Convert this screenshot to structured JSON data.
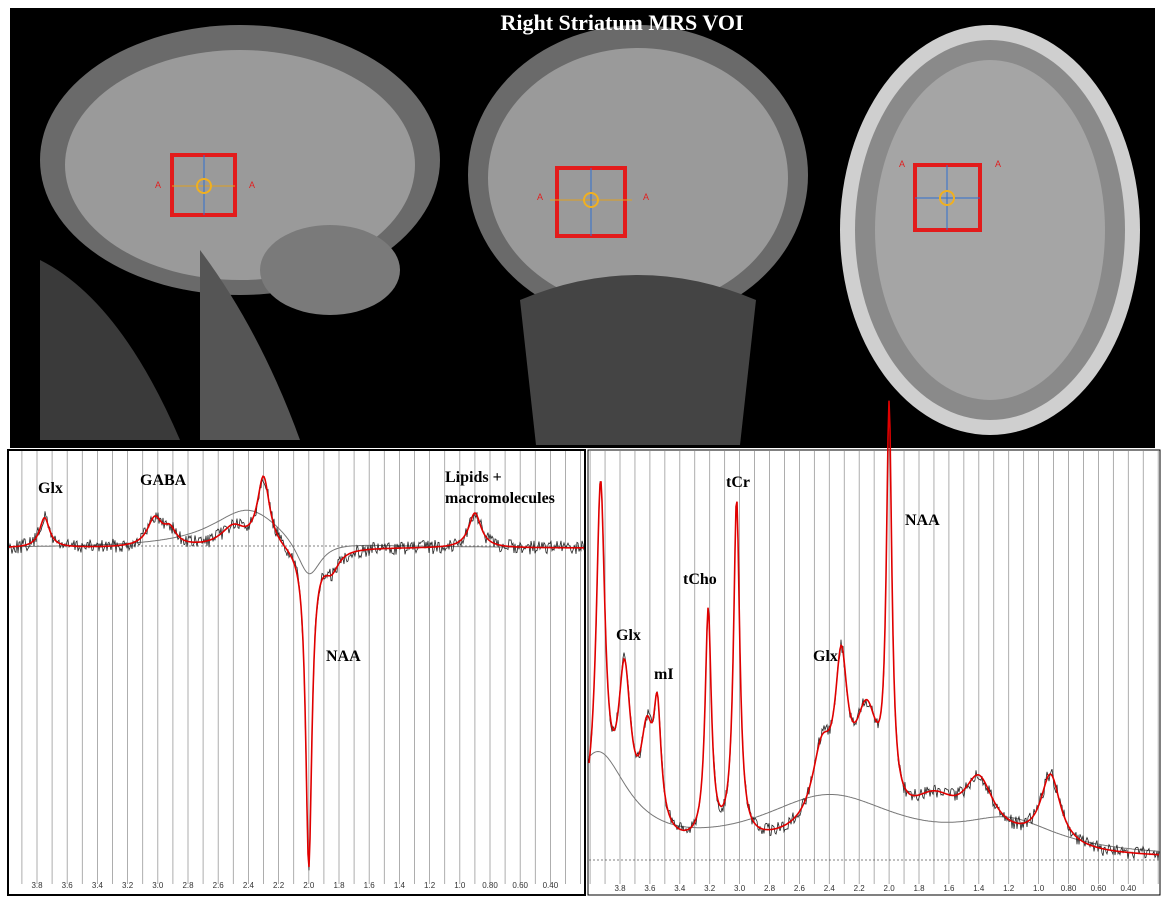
{
  "title": "Right Striatum MRS VOI",
  "mri_views": [
    {
      "markers": [
        "A",
        "A"
      ]
    },
    {
      "markers": [
        "A",
        "A"
      ]
    },
    {
      "markers": [
        "A",
        "A"
      ]
    }
  ],
  "spectra": [
    {
      "peak_labels": [
        "Glx",
        "GABA",
        "Lipids +",
        "macromolecules",
        "NAA"
      ],
      "ppm_ticks": [
        "3.8",
        "3.6",
        "3.4",
        "3.2",
        "3.0",
        "2.8",
        "2.6",
        "2.4",
        "2.2",
        "2.0",
        "1.8",
        "1.6",
        "1.4",
        "1.2",
        "1.0",
        "0.80",
        "0.60",
        "0.40"
      ]
    },
    {
      "peak_labels": [
        "Glx",
        "mI",
        "tCho",
        "tCr",
        "Glx",
        "NAA"
      ],
      "ppm_ticks": [
        "3.8",
        "3.6",
        "3.4",
        "3.2",
        "3.0",
        "2.8",
        "2.6",
        "2.4",
        "2.2",
        "2.0",
        "1.8",
        "1.6",
        "1.4",
        "1.2",
        "1.0",
        "0.80",
        "0.60",
        "0.40"
      ]
    }
  ]
}
